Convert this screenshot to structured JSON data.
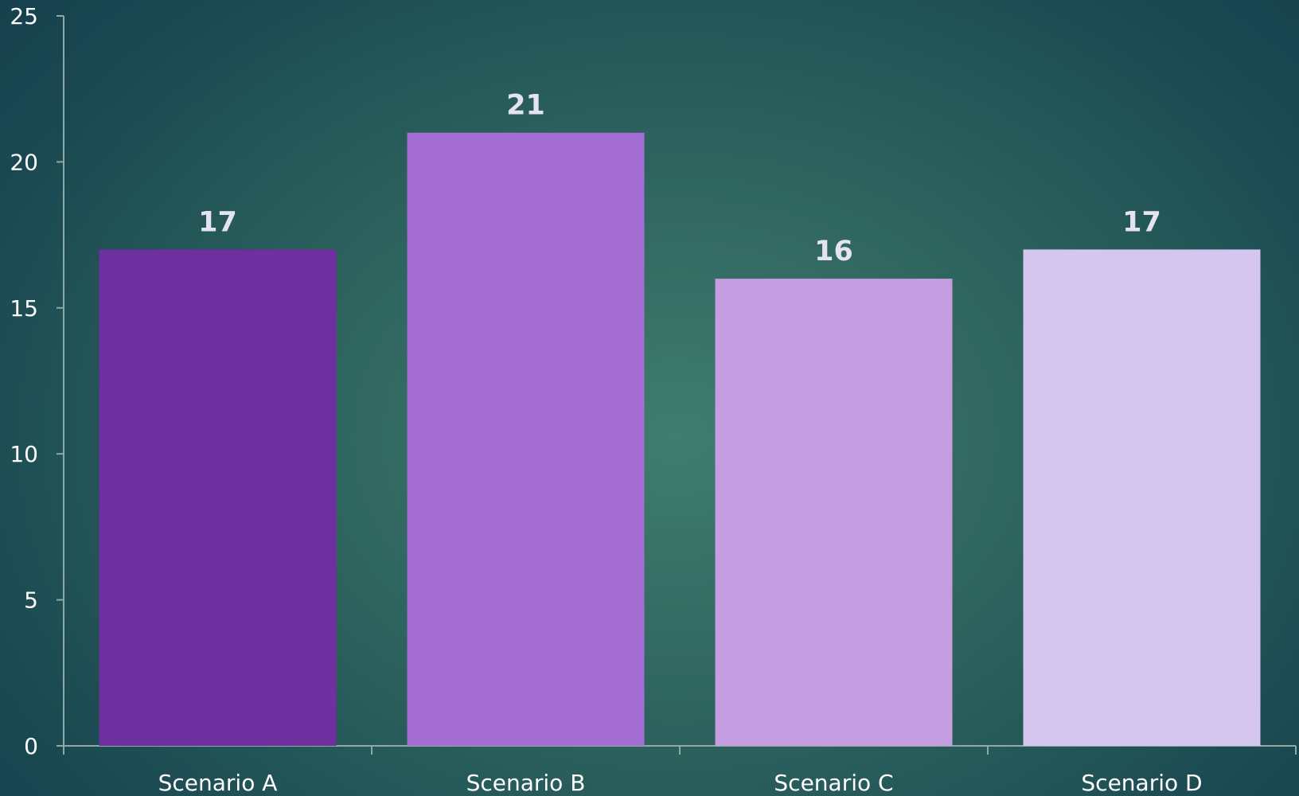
{
  "chart_data": {
    "type": "bar",
    "categories": [
      "Scenario A",
      "Scenario B",
      "Scenario C",
      "Scenario D"
    ],
    "values": [
      17,
      21,
      16,
      17
    ],
    "data_labels": [
      "17",
      "21",
      "16",
      "17"
    ],
    "bar_colors": [
      "#6e2f9f",
      "#a46ed4",
      "#c59ee2",
      "#d4c6ee"
    ],
    "ylim": [
      0,
      25
    ],
    "yticks": [
      0,
      5,
      10,
      15,
      20,
      25
    ],
    "ytick_labels": [
      "0",
      "5",
      "10",
      "15",
      "20",
      "25"
    ],
    "grid": false,
    "legend": "none",
    "title": "",
    "xlabel": "",
    "ylabel": ""
  }
}
